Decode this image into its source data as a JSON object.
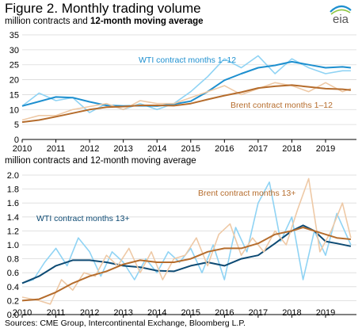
{
  "title": "Figure 2. Monthly trading volume",
  "subtitle_plain": "million contracts and ",
  "subtitle_bold": "12-month moving average",
  "source": "Sources: CME Group, Intercontinental Exchange, Bloomberg L.P.",
  "logo_text": "eia",
  "colors": {
    "wti_monthly": "#8fd3f4",
    "wti_average": "#1d8fcf",
    "brent_monthly": "#eec9a6",
    "brent_average": "#b56c2c",
    "wti13_average": "#0d4a73"
  },
  "chart_data": [
    {
      "type": "line",
      "x_ticks": [
        "2010",
        "2011",
        "2012",
        "2013",
        "2014",
        "2015",
        "2016",
        "2017",
        "2018",
        "2019"
      ],
      "y_ticks": [
        "0",
        "5",
        "10",
        "15",
        "20",
        "25",
        "30",
        "35"
      ],
      "ylim": [
        0,
        35
      ],
      "x_range": [
        "2010-01",
        "2019-12"
      ],
      "grid": true,
      "series": [
        {
          "name": "",
          "key": "wti_monthly",
          "points": [
            [
              0,
              11.2
            ],
            [
              6,
              15.5
            ],
            [
              12,
              13
            ],
            [
              18,
              14
            ],
            [
              24,
              9
            ],
            [
              30,
              12
            ],
            [
              36,
              10
            ],
            [
              42,
              12
            ],
            [
              48,
              10
            ],
            [
              54,
              12
            ],
            [
              60,
              16
            ],
            [
              66,
              21
            ],
            [
              72,
              27
            ],
            [
              78,
              24
            ],
            [
              84,
              28
            ],
            [
              90,
              22
            ],
            [
              96,
              27
            ],
            [
              102,
              24
            ],
            [
              108,
              22
            ],
            [
              114,
              23
            ],
            [
              117,
              23
            ]
          ]
        },
        {
          "name": "WTI contract months 1–12",
          "key": "wti_average",
          "points": [
            [
              0,
              11.2
            ],
            [
              6,
              12.7
            ],
            [
              12,
              14.2
            ],
            [
              18,
              14
            ],
            [
              24,
              12.6
            ],
            [
              30,
              11.4
            ],
            [
              36,
              11.2
            ],
            [
              42,
              11.3
            ],
            [
              48,
              11.2
            ],
            [
              54,
              11.8
            ],
            [
              60,
              12.8
            ],
            [
              66,
              16
            ],
            [
              72,
              19.8
            ],
            [
              78,
              22
            ],
            [
              84,
              24
            ],
            [
              90,
              24.8
            ],
            [
              96,
              26
            ],
            [
              102,
              25
            ],
            [
              108,
              24
            ],
            [
              114,
              24.3
            ],
            [
              117,
              24
            ]
          ]
        },
        {
          "name": "",
          "key": "brent_monthly",
          "points": [
            [
              0,
              6.5
            ],
            [
              6,
              8
            ],
            [
              12,
              8
            ],
            [
              18,
              10
            ],
            [
              24,
              11
            ],
            [
              30,
              12
            ],
            [
              36,
              10
            ],
            [
              42,
              13
            ],
            [
              48,
              12
            ],
            [
              54,
              12
            ],
            [
              60,
              14
            ],
            [
              66,
              16
            ],
            [
              72,
              18
            ],
            [
              78,
              15
            ],
            [
              84,
              17
            ],
            [
              90,
              19
            ],
            [
              96,
              18
            ],
            [
              102,
              16
            ],
            [
              108,
              19
            ],
            [
              114,
              16
            ],
            [
              117,
              17
            ]
          ]
        },
        {
          "name": "Brent contract months 1–12",
          "key": "brent_average",
          "points": [
            [
              0,
              5.8
            ],
            [
              6,
              6.5
            ],
            [
              12,
              7.6
            ],
            [
              18,
              8.8
            ],
            [
              24,
              10
            ],
            [
              30,
              10.8
            ],
            [
              36,
              11
            ],
            [
              42,
              11.4
            ],
            [
              48,
              11.4
            ],
            [
              54,
              11.3
            ],
            [
              60,
              12
            ],
            [
              66,
              13.4
            ],
            [
              72,
              14.7
            ],
            [
              78,
              15.8
            ],
            [
              84,
              17.2
            ],
            [
              90,
              17.8
            ],
            [
              96,
              18.2
            ],
            [
              102,
              17.6
            ],
            [
              108,
              17
            ],
            [
              114,
              16.8
            ],
            [
              117,
              16.5
            ]
          ]
        }
      ]
    },
    {
      "type": "line",
      "title": "million contracts and 12-month moving average",
      "x_ticks": [
        "2010",
        "2011",
        "2012",
        "2013",
        "2014",
        "2015",
        "2016",
        "2017",
        "2018",
        "2019"
      ],
      "y_ticks": [
        "0.0",
        "0.2",
        "0.4",
        "0.6",
        "0.8",
        "1.0",
        "1.2",
        "1.4",
        "1.6",
        "1.8",
        "2.0"
      ],
      "ylim": [
        0,
        2.0
      ],
      "x_range": [
        "2010-01",
        "2019-12"
      ],
      "grid": true,
      "series": [
        {
          "name": "",
          "key": "wti_monthly",
          "points": [
            [
              0,
              0.45
            ],
            [
              4,
              0.5
            ],
            [
              8,
              0.75
            ],
            [
              12,
              0.95
            ],
            [
              16,
              0.7
            ],
            [
              20,
              1.1
            ],
            [
              24,
              0.9
            ],
            [
              28,
              0.55
            ],
            [
              32,
              0.9
            ],
            [
              36,
              0.75
            ],
            [
              40,
              0.5
            ],
            [
              44,
              0.8
            ],
            [
              48,
              0.6
            ],
            [
              52,
              0.9
            ],
            [
              56,
              0.75
            ],
            [
              60,
              0.95
            ],
            [
              64,
              0.6
            ],
            [
              68,
              1.0
            ],
            [
              72,
              0.5
            ],
            [
              76,
              1.25
            ],
            [
              80,
              0.9
            ],
            [
              84,
              1.6
            ],
            [
              88,
              1.9
            ],
            [
              92,
              1.05
            ],
            [
              96,
              1.4
            ],
            [
              100,
              0.5
            ],
            [
              104,
              1.2
            ],
            [
              108,
              0.85
            ],
            [
              112,
              1.45
            ],
            [
              117,
              1.0
            ]
          ]
        },
        {
          "name": "WTI contract months  13+",
          "key": "wti13_average",
          "points": [
            [
              0,
              0.45
            ],
            [
              6,
              0.55
            ],
            [
              12,
              0.7
            ],
            [
              18,
              0.78
            ],
            [
              24,
              0.78
            ],
            [
              30,
              0.75
            ],
            [
              36,
              0.7
            ],
            [
              42,
              0.68
            ],
            [
              48,
              0.63
            ],
            [
              54,
              0.62
            ],
            [
              60,
              0.7
            ],
            [
              66,
              0.75
            ],
            [
              72,
              0.7
            ],
            [
              78,
              0.8
            ],
            [
              84,
              0.85
            ],
            [
              90,
              1.02
            ],
            [
              96,
              1.2
            ],
            [
              100,
              1.28
            ],
            [
              104,
              1.2
            ],
            [
              108,
              1.05
            ],
            [
              112,
              1.02
            ],
            [
              117,
              0.98
            ]
          ]
        },
        {
          "name": "",
          "key": "brent_monthly",
          "points": [
            [
              0,
              0.25
            ],
            [
              6,
              0.2
            ],
            [
              10,
              0.15
            ],
            [
              14,
              0.5
            ],
            [
              18,
              0.35
            ],
            [
              22,
              0.6
            ],
            [
              26,
              0.55
            ],
            [
              30,
              0.85
            ],
            [
              34,
              0.7
            ],
            [
              38,
              0.95
            ],
            [
              42,
              0.6
            ],
            [
              46,
              0.9
            ],
            [
              50,
              0.5
            ],
            [
              54,
              0.8
            ],
            [
              58,
              0.85
            ],
            [
              62,
              1.1
            ],
            [
              66,
              0.7
            ],
            [
              70,
              1.15
            ],
            [
              74,
              1.3
            ],
            [
              78,
              0.85
            ],
            [
              82,
              1.1
            ],
            [
              86,
              0.9
            ],
            [
              90,
              1.2
            ],
            [
              94,
              1.0
            ],
            [
              98,
              1.5
            ],
            [
              102,
              1.95
            ],
            [
              106,
              0.9
            ],
            [
              110,
              1.2
            ],
            [
              114,
              1.6
            ],
            [
              117,
              1.1
            ]
          ]
        },
        {
          "name": "Brent contract months 13+",
          "key": "brent_average",
          "points": [
            [
              0,
              0.2
            ],
            [
              6,
              0.22
            ],
            [
              12,
              0.32
            ],
            [
              18,
              0.45
            ],
            [
              24,
              0.55
            ],
            [
              30,
              0.62
            ],
            [
              36,
              0.72
            ],
            [
              42,
              0.78
            ],
            [
              48,
              0.75
            ],
            [
              54,
              0.75
            ],
            [
              60,
              0.8
            ],
            [
              66,
              0.9
            ],
            [
              72,
              0.95
            ],
            [
              78,
              0.95
            ],
            [
              84,
              1.02
            ],
            [
              90,
              1.15
            ],
            [
              96,
              1.2
            ],
            [
              100,
              1.25
            ],
            [
              104,
              1.2
            ],
            [
              108,
              1.15
            ],
            [
              112,
              1.1
            ],
            [
              117,
              1.08
            ]
          ]
        }
      ]
    }
  ]
}
